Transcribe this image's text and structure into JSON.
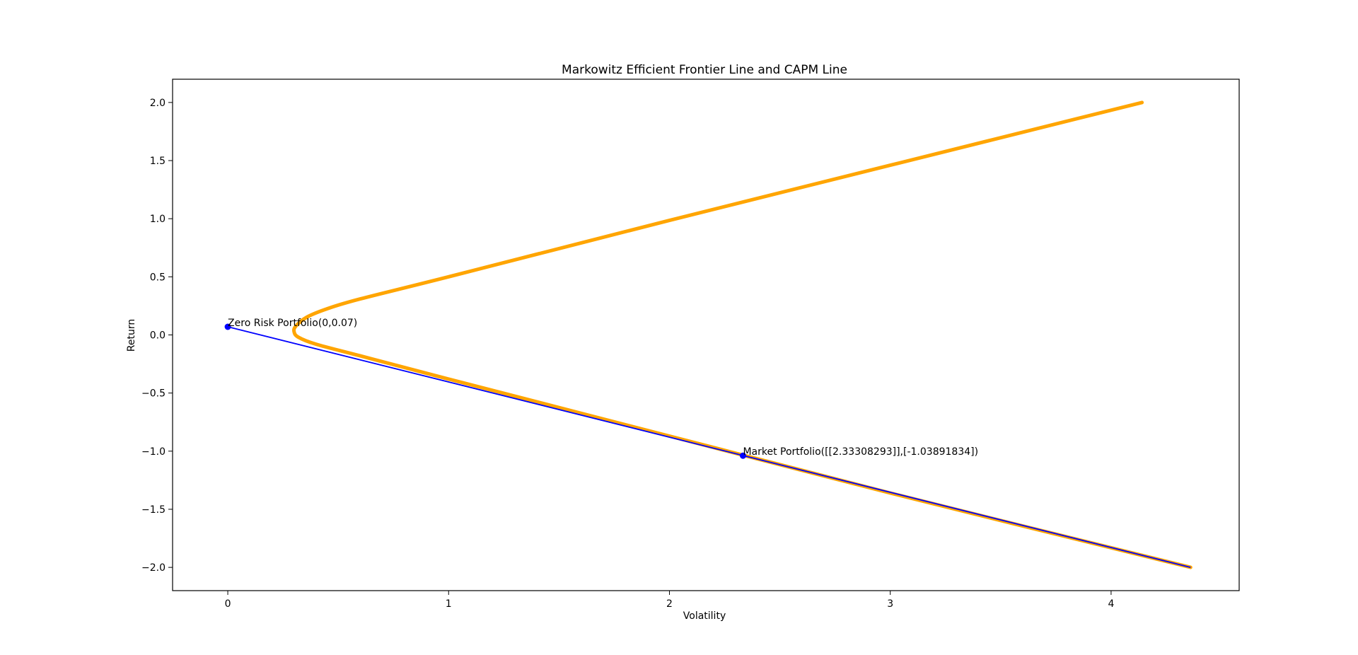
{
  "colors": {
    "frontier": "#ffa500",
    "capm": "#0000ff",
    "axis": "#000000",
    "background": "#ffffff"
  },
  "chart_data": {
    "type": "line",
    "title": "Markowitz Efficient Frontier Line and CAPM Line",
    "xlabel": "Volatility",
    "ylabel": "Return",
    "xlim": [
      -0.25,
      4.58
    ],
    "ylim": [
      -2.2,
      2.2
    ],
    "x_ticks": [
      0,
      1,
      2,
      3,
      4
    ],
    "x_tick_labels": [
      "0",
      "1",
      "2",
      "3",
      "4"
    ],
    "y_ticks": [
      -2.0,
      -1.5,
      -1.0,
      -0.5,
      0.0,
      0.5,
      1.0,
      1.5,
      2.0
    ],
    "y_tick_labels": [
      "−2.0",
      "−1.5",
      "−1.0",
      "−0.5",
      "0.0",
      "0.5",
      "1.0",
      "1.5",
      "2.0"
    ],
    "grid": false,
    "series": [
      {
        "kind": "frontier",
        "color": "#ffa500",
        "points": [
          {
            "x": 4.14,
            "y": 2.0
          },
          {
            "x": 3.0,
            "y": 1.46
          },
          {
            "x": 2.0,
            "y": 0.985
          },
          {
            "x": 1.0,
            "y": 0.5
          },
          {
            "x": 0.6,
            "y": 0.31
          },
          {
            "x": 0.45,
            "y": 0.225
          },
          {
            "x": 0.36,
            "y": 0.155
          },
          {
            "x": 0.31,
            "y": 0.08
          },
          {
            "x": 0.3,
            "y": 0.03
          },
          {
            "x": 0.32,
            "y": -0.02
          },
          {
            "x": 0.4,
            "y": -0.08
          },
          {
            "x": 0.6,
            "y": -0.18
          },
          {
            "x": 1.0,
            "y": -0.38
          },
          {
            "x": 2.0,
            "y": -0.87
          },
          {
            "x": 3.0,
            "y": -1.36
          },
          {
            "x": 4.36,
            "y": -2.0
          }
        ]
      },
      {
        "kind": "capm",
        "color": "#0000ff",
        "points": [
          {
            "x": 0,
            "y": 0.07
          },
          {
            "x": 4.36,
            "y": -2.0
          }
        ]
      }
    ],
    "markers": [
      {
        "x": 0,
        "y": 0.07,
        "label": "Zero Risk Portfolio(0,0.07)"
      },
      {
        "x": 2.33308293,
        "y": -1.03891834,
        "label": "Market Portfolio([[2.33308293]],[-1.03891834])"
      }
    ]
  }
}
